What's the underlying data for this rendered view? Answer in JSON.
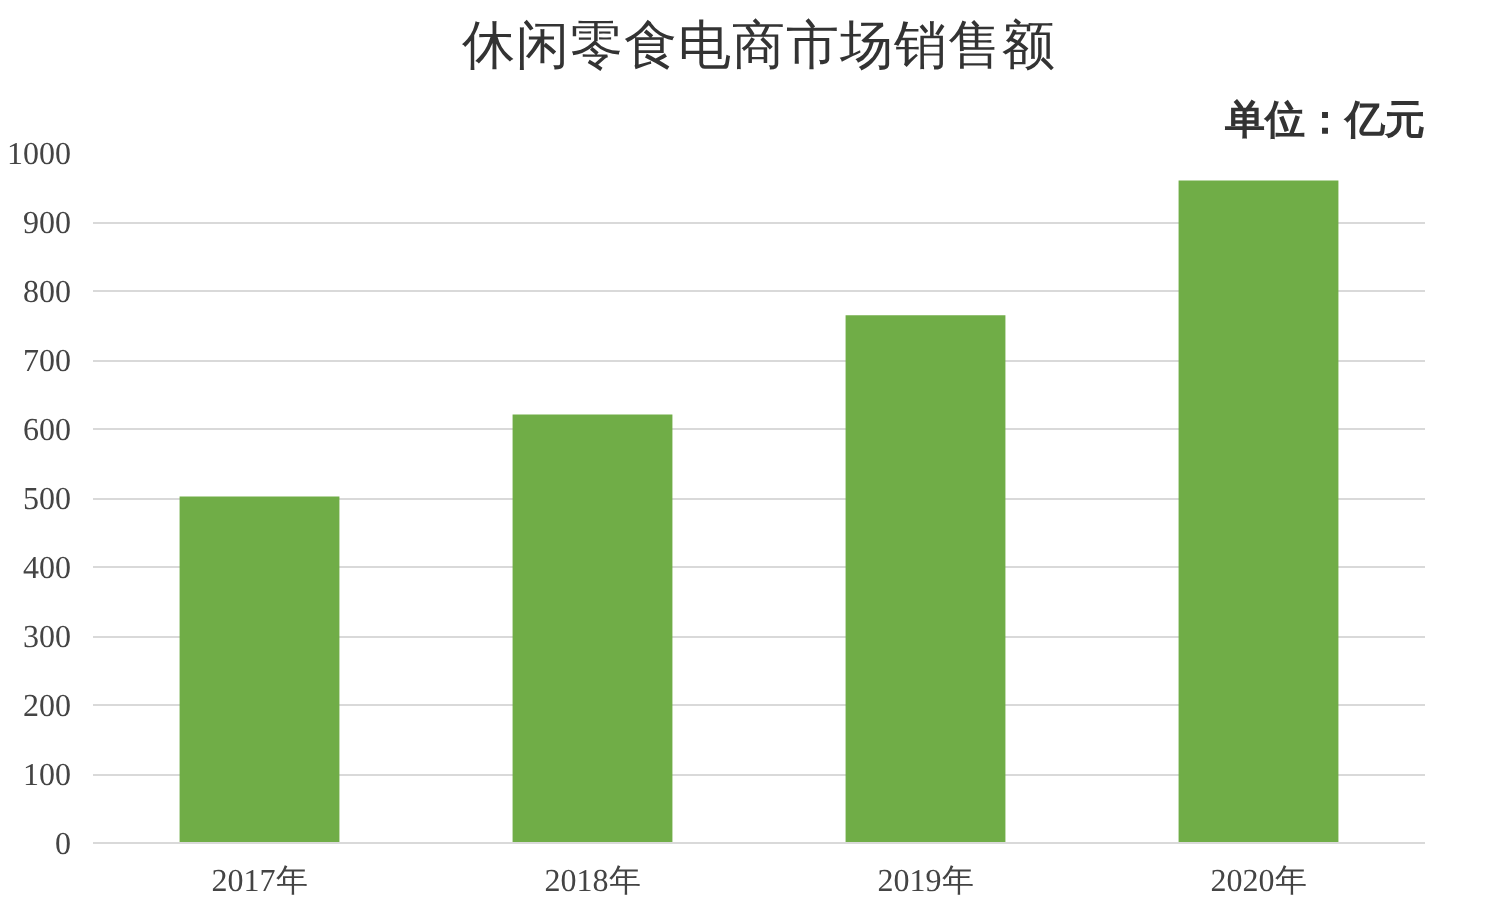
{
  "chart_data": {
    "type": "bar",
    "title": "休闲零食电商市场销售额",
    "annotations": [
      "单位：亿元"
    ],
    "categories": [
      "2017年",
      "2018年",
      "2019年",
      "2020年"
    ],
    "values": [
      502,
      621,
      765,
      960
    ],
    "color": "#70ad47",
    "ylim": [
      0,
      1000
    ],
    "yticks": [
      0,
      100,
      200,
      300,
      400,
      500,
      600,
      700,
      800,
      900,
      1000
    ],
    "grid": "y"
  }
}
